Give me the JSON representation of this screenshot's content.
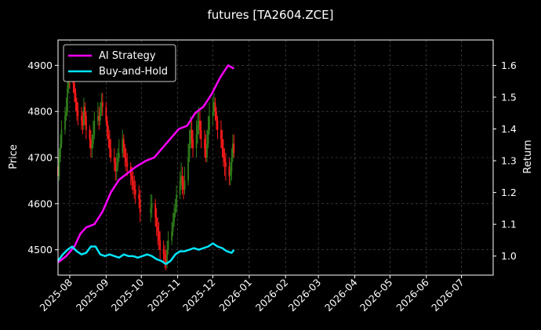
{
  "chart_data": {
    "type": "line",
    "title": "futures [TA2604.ZCE]",
    "ylabel_left": "Price",
    "ylabel_right": "Return",
    "xlabel": "",
    "x_ticks": [
      "2025-08",
      "2025-09",
      "2025-10",
      "2025-11",
      "2025-12",
      "2026-01",
      "2026-02",
      "2026-03",
      "2026-04",
      "2026-05",
      "2026-06",
      "2026-07"
    ],
    "xlim": [
      "2025-07-22",
      "2026-07-28"
    ],
    "ylim_left": [
      4445,
      4955
    ],
    "ylim_right": [
      0.94,
      1.68
    ],
    "yticks_left": [
      4500,
      4600,
      4700,
      4800,
      4900
    ],
    "yticks_right": [
      1.0,
      1.1,
      1.2,
      1.3,
      1.4,
      1.5,
      1.6
    ],
    "grid": true,
    "legend_position": "top-left",
    "colors": {
      "background": "#000000",
      "axes": "#ffffff",
      "grid": "#555555",
      "up_candle": "#2f7d1a",
      "down_candle": "#ff1a1a"
    },
    "candles": {
      "dates": [
        "2025-07-22",
        "2025-07-23",
        "2025-07-24",
        "2025-07-25",
        "2025-07-28",
        "2025-07-29",
        "2025-07-30",
        "2025-07-31",
        "2025-08-01",
        "2025-08-04",
        "2025-08-05",
        "2025-08-06",
        "2025-08-07",
        "2025-08-08",
        "2025-08-11",
        "2025-08-12",
        "2025-08-13",
        "2025-08-14",
        "2025-08-15",
        "2025-08-18",
        "2025-08-19",
        "2025-08-20",
        "2025-08-21",
        "2025-08-22",
        "2025-08-25",
        "2025-08-26",
        "2025-08-27",
        "2025-08-28",
        "2025-08-29",
        "2025-09-01",
        "2025-09-02",
        "2025-09-03",
        "2025-09-04",
        "2025-09-05",
        "2025-09-08",
        "2025-09-09",
        "2025-09-10",
        "2025-09-11",
        "2025-09-12",
        "2025-09-15",
        "2025-09-16",
        "2025-09-17",
        "2025-09-18",
        "2025-09-19",
        "2025-09-22",
        "2025-09-23",
        "2025-09-24",
        "2025-09-25",
        "2025-09-26",
        "2025-09-29",
        "2025-09-30",
        "2025-10-09",
        "2025-10-10",
        "2025-10-13",
        "2025-10-14",
        "2025-10-15",
        "2025-10-16",
        "2025-10-17",
        "2025-10-20",
        "2025-10-21",
        "2025-10-22",
        "2025-10-23",
        "2025-10-24",
        "2025-10-27",
        "2025-10-28",
        "2025-10-29",
        "2025-10-30",
        "2025-10-31",
        "2025-11-03",
        "2025-11-04",
        "2025-11-05",
        "2025-11-06",
        "2025-11-07",
        "2025-11-10",
        "2025-11-11",
        "2025-11-12",
        "2025-11-13",
        "2025-11-14",
        "2025-11-17",
        "2025-11-18",
        "2025-11-19",
        "2025-11-20",
        "2025-11-21",
        "2025-11-24",
        "2025-11-25",
        "2025-11-26",
        "2025-11-27",
        "2025-11-28",
        "2025-12-01",
        "2025-12-02",
        "2025-12-03",
        "2025-12-04",
        "2025-12-05",
        "2025-12-08",
        "2025-12-09",
        "2025-12-10",
        "2025-12-11",
        "2025-12-12",
        "2025-12-15",
        "2025-12-16",
        "2025-12-17",
        "2025-12-18",
        "2025-12-19"
      ],
      "open": [
        4680,
        4660,
        4700,
        4730,
        4760,
        4790,
        4800,
        4850,
        4880,
        4870,
        4860,
        4840,
        4820,
        4800,
        4790,
        4780,
        4770,
        4810,
        4790,
        4760,
        4740,
        4720,
        4730,
        4750,
        4780,
        4790,
        4780,
        4800,
        4820,
        4810,
        4780,
        4750,
        4740,
        4720,
        4700,
        4690,
        4670,
        4680,
        4700,
        4710,
        4740,
        4720,
        4700,
        4690,
        4680,
        4660,
        4650,
        4640,
        4630,
        4620,
        4610,
        4580,
        4590,
        4600,
        4570,
        4550,
        4540,
        4520,
        4500,
        4490,
        4480,
        4470,
        4500,
        4520,
        4540,
        4560,
        4580,
        4590,
        4620,
        4650,
        4660,
        4640,
        4630,
        4650,
        4700,
        4730,
        4760,
        4740,
        4720,
        4750,
        4770,
        4780,
        4760,
        4740,
        4720,
        4700,
        4730,
        4760,
        4790,
        4800,
        4820,
        4800,
        4780,
        4760,
        4740,
        4720,
        4700,
        4690,
        4680,
        4660,
        4670,
        4700,
        4730
      ],
      "close": [
        4660,
        4700,
        4730,
        4760,
        4790,
        4800,
        4850,
        4880,
        4870,
        4860,
        4840,
        4820,
        4800,
        4790,
        4780,
        4770,
        4810,
        4790,
        4760,
        4740,
        4720,
        4730,
        4750,
        4780,
        4790,
        4780,
        4800,
        4820,
        4810,
        4780,
        4750,
        4740,
        4720,
        4700,
        4690,
        4670,
        4680,
        4700,
        4710,
        4740,
        4720,
        4700,
        4690,
        4680,
        4660,
        4650,
        4640,
        4630,
        4620,
        4610,
        4580,
        4590,
        4600,
        4570,
        4550,
        4540,
        4520,
        4500,
        4490,
        4480,
        4470,
        4500,
        4520,
        4540,
        4560,
        4580,
        4590,
        4620,
        4650,
        4660,
        4640,
        4630,
        4650,
        4700,
        4730,
        4760,
        4740,
        4720,
        4750,
        4770,
        4780,
        4760,
        4740,
        4720,
        4700,
        4730,
        4760,
        4790,
        4800,
        4820,
        4800,
        4780,
        4760,
        4740,
        4720,
        4700,
        4690,
        4680,
        4660,
        4670,
        4700,
        4730,
        4710
      ],
      "high": [
        4700,
        4720,
        4750,
        4780,
        4810,
        4830,
        4880,
        4900,
        4900,
        4890,
        4870,
        4850,
        4830,
        4820,
        4810,
        4800,
        4830,
        4820,
        4800,
        4770,
        4760,
        4750,
        4780,
        4800,
        4820,
        4810,
        4820,
        4840,
        4840,
        4820,
        4790,
        4770,
        4760,
        4740,
        4720,
        4700,
        4710,
        4720,
        4740,
        4760,
        4750,
        4730,
        4720,
        4710,
        4690,
        4680,
        4670,
        4660,
        4650,
        4640,
        4630,
        4620,
        4620,
        4610,
        4590,
        4570,
        4560,
        4540,
        4520,
        4510,
        4500,
        4520,
        4540,
        4560,
        4580,
        4600,
        4610,
        4640,
        4670,
        4690,
        4680,
        4660,
        4680,
        4730,
        4760,
        4790,
        4780,
        4760,
        4780,
        4800,
        4810,
        4800,
        4780,
        4760,
        4750,
        4760,
        4790,
        4820,
        4830,
        4840,
        4830,
        4810,
        4790,
        4780,
        4760,
        4740,
        4720,
        4710,
        4700,
        4690,
        4720,
        4750,
        4750
      ],
      "low": [
        4640,
        4650,
        4690,
        4720,
        4750,
        4780,
        4790,
        4840,
        4850,
        4840,
        4820,
        4800,
        4780,
        4770,
        4760,
        4750,
        4760,
        4770,
        4740,
        4720,
        4700,
        4700,
        4720,
        4740,
        4770,
        4760,
        4770,
        4790,
        4790,
        4770,
        4740,
        4720,
        4700,
        4690,
        4670,
        4650,
        4650,
        4670,
        4690,
        4700,
        4700,
        4680,
        4670,
        4660,
        4640,
        4630,
        4620,
        4610,
        4600,
        4590,
        4560,
        4560,
        4570,
        4550,
        4530,
        4510,
        4500,
        4480,
        4470,
        4460,
        4455,
        4460,
        4490,
        4510,
        4530,
        4550,
        4570,
        4580,
        4610,
        4630,
        4620,
        4610,
        4620,
        4640,
        4690,
        4720,
        4720,
        4700,
        4700,
        4730,
        4750,
        4740,
        4720,
        4700,
        4690,
        4690,
        4720,
        4750,
        4770,
        4790,
        4780,
        4760,
        4740,
        4720,
        4700,
        4680,
        4660,
        4650,
        4640,
        4640,
        4650,
        4690,
        4700
      ]
    },
    "series": [
      {
        "name": "AI Strategy",
        "color": "#ff00ff",
        "dates": [
          "2025-07-22",
          "2025-07-29",
          "2025-08-05",
          "2025-08-10",
          "2025-08-15",
          "2025-08-22",
          "2025-08-29",
          "2025-09-05",
          "2025-09-12",
          "2025-09-19",
          "2025-09-26",
          "2025-10-05",
          "2025-10-12",
          "2025-10-19",
          "2025-10-26",
          "2025-11-02",
          "2025-11-09",
          "2025-11-16",
          "2025-11-23",
          "2025-11-30",
          "2025-12-07",
          "2025-12-14",
          "2025-12-19"
        ],
        "values": [
          0.98,
          1.0,
          1.03,
          1.07,
          1.09,
          1.1,
          1.14,
          1.2,
          1.24,
          1.26,
          1.28,
          1.3,
          1.31,
          1.34,
          1.37,
          1.4,
          1.41,
          1.45,
          1.47,
          1.51,
          1.56,
          1.6,
          1.59
        ]
      },
      {
        "name": "Buy-and-Hold",
        "color": "#00e5ff",
        "dates": [
          "2025-07-22",
          "2025-07-26",
          "2025-07-30",
          "2025-08-03",
          "2025-08-07",
          "2025-08-11",
          "2025-08-15",
          "2025-08-19",
          "2025-08-23",
          "2025-08-27",
          "2025-08-31",
          "2025-09-04",
          "2025-09-08",
          "2025-09-12",
          "2025-09-16",
          "2025-09-20",
          "2025-09-24",
          "2025-09-28",
          "2025-10-02",
          "2025-10-06",
          "2025-10-10",
          "2025-10-14",
          "2025-10-18",
          "2025-10-22",
          "2025-10-26",
          "2025-10-30",
          "2025-11-03",
          "2025-11-07",
          "2025-11-11",
          "2025-11-15",
          "2025-11-19",
          "2025-11-23",
          "2025-11-27",
          "2025-12-01",
          "2025-12-05",
          "2025-12-09",
          "2025-12-13",
          "2025-12-17",
          "2025-12-19"
        ],
        "values": [
          0.985,
          1.005,
          1.02,
          1.03,
          1.015,
          1.005,
          1.01,
          1.03,
          1.03,
          1.005,
          1.0,
          1.005,
          1.0,
          0.995,
          1.005,
          1.0,
          1.0,
          0.995,
          1.0,
          1.005,
          1.0,
          0.99,
          0.985,
          0.975,
          0.985,
          1.005,
          1.015,
          1.015,
          1.02,
          1.025,
          1.02,
          1.025,
          1.03,
          1.04,
          1.03,
          1.025,
          1.015,
          1.01,
          1.02
        ]
      }
    ]
  }
}
